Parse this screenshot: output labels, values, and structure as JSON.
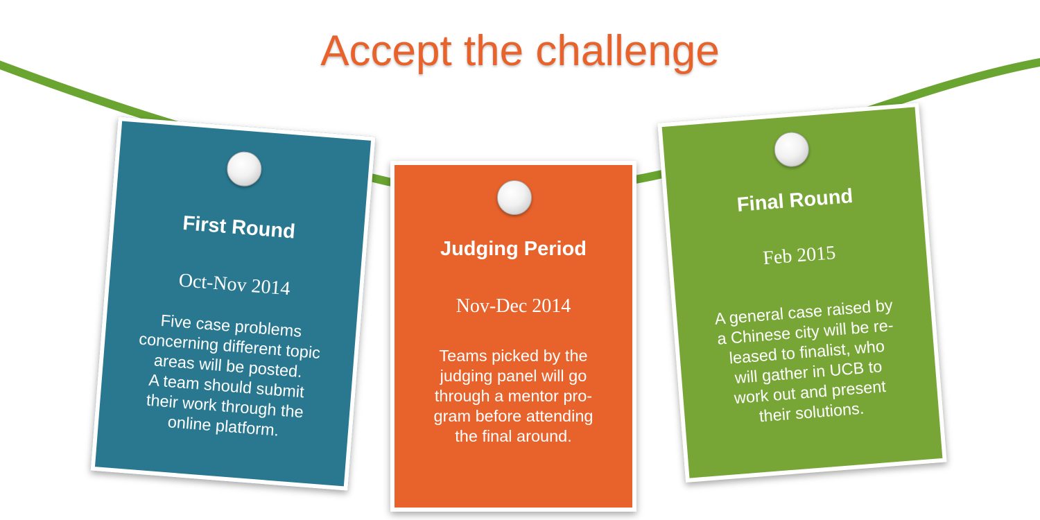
{
  "header": {
    "title": "Accept the challenge"
  },
  "colors": {
    "title": "#e8622c",
    "rope": "#6aa531",
    "first_round_card": "#2a7890",
    "judging_card": "#e8622c",
    "final_round_card": "#77a637"
  },
  "cards": [
    {
      "heading": "First Round",
      "date": "Oct-Nov 2014",
      "body": "Five case problems\nconcerning different topic\nareas will be posted.\nA team should submit\ntheir work through the\nonline platform.",
      "icon": "pushpin-icon"
    },
    {
      "heading": "Judging Period",
      "date": "Nov-Dec 2014",
      "body": "Teams picked by the\njudging panel will go\nthrough a mentor pro-\ngram before attending\nthe final around.",
      "icon": "pushpin-icon"
    },
    {
      "heading": "Final Round",
      "date": "Feb 2015",
      "body": "A general case raised by\na Chinese city will be re-\nleased to finalist, who\nwill gather in UCB to\nwork out and present\ntheir solutions.",
      "icon": "pushpin-icon"
    }
  ]
}
